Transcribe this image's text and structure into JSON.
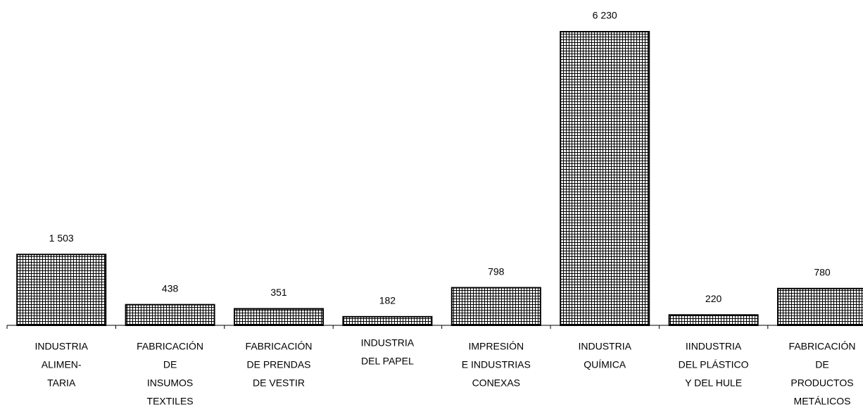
{
  "chart_data": {
    "type": "bar",
    "categories": [
      [
        "INDUSTRIA",
        "ALIMEN-",
        "TARIA"
      ],
      [
        "FABRICACIÓN",
        "DE",
        "INSUMOS",
        "TEXTILES"
      ],
      [
        "FABRICACIÓN",
        "DE PRENDAS",
        "DE VESTIR"
      ],
      [
        "INDUSTRIA",
        "DEL PAPEL"
      ],
      [
        "IMPRESIÓN",
        "E INDUSTRIAS",
        "CONEXAS"
      ],
      [
        "INDUSTRIA",
        "QUÍMICA"
      ],
      [
        "IINDUSTRIA",
        "DEL PLÁSTICO",
        "Y DEL HULE"
      ],
      [
        "FABRICACIÓN",
        "DE",
        "PRODUCTOS",
        "METÁLICOS"
      ]
    ],
    "values": [
      1503,
      438,
      351,
      182,
      798,
      6230,
      220,
      780
    ],
    "value_labels": [
      "1 503",
      "438",
      "351",
      "182",
      "798",
      "6 230",
      "220",
      "780"
    ],
    "color": "#000000"
  }
}
